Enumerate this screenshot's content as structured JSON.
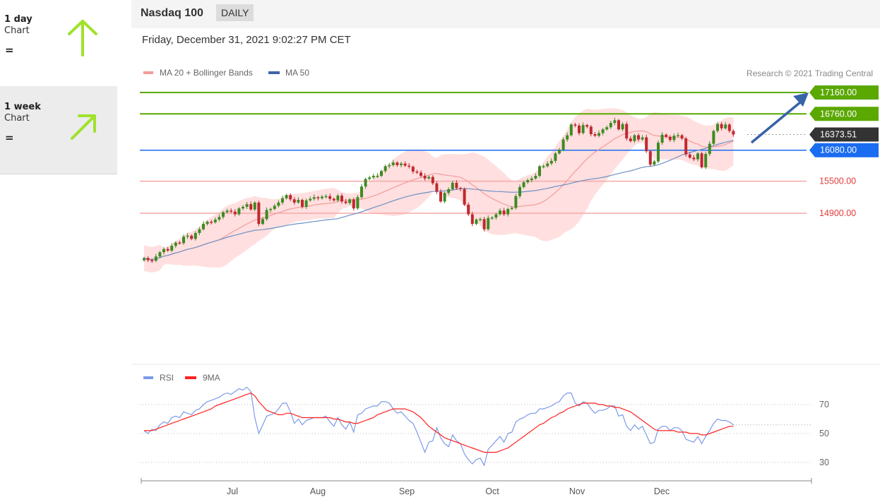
{
  "periods": [
    {
      "title": "1 day",
      "subtitle": "Chart",
      "signal": "=",
      "arrow_icon": "arrow-up-icon",
      "arrow_color": "#9fe22a"
    },
    {
      "title": "1 week",
      "subtitle": "Chart",
      "signal": "=",
      "arrow_icon": "arrow-up-right-icon",
      "arrow_color": "#9fe22a"
    }
  ],
  "header": {
    "title": "Nasdaq 100",
    "interval": "DAILY"
  },
  "date_line": "Friday, December 31, 2021 9:02:27 PM CET",
  "legend": {
    "ma20": "MA 20 + Bollinger Bands",
    "ma50": "MA 50"
  },
  "research": "Research © 2021 Trading Central",
  "colors": {
    "green": "#5aa800",
    "blue": "#1a6cf0",
    "red_line": "#f7a9a9",
    "red_text": "#e23b3b",
    "dark": "#333333",
    "bb_fill": "#ffd9d9",
    "ma50": "#6d90c6",
    "ma20": "#f39b9b",
    "up_candle": "#3e8a23",
    "down_candle": "#c0282f",
    "rsi": "#7b9ae8",
    "rsi_ma": "#ff2020"
  },
  "chart_data": [
    {
      "type": "line",
      "title": "Nasdaq 100",
      "subtitle": "DAILY",
      "x_ticks": [
        "Jul",
        "Aug",
        "Sep",
        "Oct",
        "Nov",
        "Dec"
      ],
      "ylim": [
        13000,
        17300
      ],
      "levels": [
        {
          "value": 17160,
          "label": "17160.00",
          "kind": "target"
        },
        {
          "value": 16760,
          "label": "16760.00",
          "kind": "resistance"
        },
        {
          "value": 16373.51,
          "label": "16373.51",
          "kind": "last"
        },
        {
          "value": 16080,
          "label": "16080.00",
          "kind": "pivot"
        },
        {
          "value": 15500,
          "label": "15500.00",
          "kind": "support"
        },
        {
          "value": 14900,
          "label": "14900.00",
          "kind": "support"
        }
      ],
      "series": [
        {
          "name": "MA 20 + Bollinger Bands"
        },
        {
          "name": "MA 50"
        }
      ],
      "close": [
        14060,
        14020,
        14010,
        14090,
        14170,
        14230,
        14200,
        14290,
        14350,
        14340,
        14460,
        14480,
        14420,
        14530,
        14600,
        14700,
        14740,
        14730,
        14780,
        14830,
        14920,
        14950,
        14930,
        14880,
        14990,
        15020,
        15070,
        14970,
        15100,
        14700,
        14790,
        14960,
        14980,
        15040,
        15100,
        15180,
        15240,
        15160,
        15100,
        15150,
        15020,
        15140,
        15170,
        15200,
        15180,
        15210,
        15220,
        15170,
        15140,
        15230,
        15120,
        15090,
        15160,
        14990,
        15200,
        15400,
        15540,
        15570,
        15600,
        15600,
        15690,
        15780,
        15800,
        15850,
        15800,
        15830,
        15790,
        15770,
        15680,
        15660,
        15600,
        15550,
        15580,
        15460,
        15300,
        15120,
        15280,
        15350,
        15470,
        15370,
        15350,
        15060,
        14880,
        14700,
        14780,
        14790,
        14600,
        14810,
        14820,
        14880,
        14950,
        14880,
        14980,
        15000,
        15220,
        15390,
        15480,
        15520,
        15550,
        15600,
        15780,
        15780,
        15830,
        15880,
        16020,
        16090,
        16280,
        16360,
        16560,
        16540,
        16400,
        16550,
        16520,
        16380,
        16350,
        16400,
        16470,
        16510,
        16590,
        16640,
        16470,
        16570,
        16300,
        16250,
        16360,
        16280,
        16320,
        16060,
        15810,
        15870,
        16220,
        16370,
        16330,
        16270,
        16350,
        16360,
        16300,
        16000,
        15940,
        15910,
        16020,
        15760,
        16010,
        16200,
        16440,
        16570,
        16490,
        16560,
        16440,
        16373.51
      ],
      "rsi": {
        "title": "RSI",
        "ma_name": "9MA",
        "levels": [
          70,
          50,
          30
        ],
        "values": [
          52,
          50,
          53,
          52,
          56,
          58,
          57,
          61,
          62,
          61,
          65,
          64,
          63,
          66,
          67,
          70,
          72,
          73,
          74,
          75,
          77,
          78,
          77,
          79,
          81,
          80,
          82,
          79,
          61,
          50,
          56,
          62,
          63,
          64,
          67,
          71,
          71,
          65,
          57,
          60,
          56,
          59,
          60,
          61,
          61,
          61,
          62,
          58,
          55,
          61,
          56,
          53,
          58,
          51,
          63,
          64,
          67,
          68,
          69,
          69,
          72,
          72,
          71,
          67,
          64,
          65,
          62,
          59,
          57,
          51,
          44,
          37,
          44,
          45,
          54,
          47,
          43,
          41,
          49,
          45,
          43,
          36,
          32,
          29,
          32,
          33,
          28,
          39,
          42,
          45,
          48,
          44,
          50,
          51,
          58,
          60,
          61,
          63,
          64,
          64,
          67,
          67,
          68,
          69,
          71,
          72,
          76,
          78,
          78,
          71,
          69,
          72,
          71,
          67,
          64,
          66,
          66,
          67,
          69,
          69,
          62,
          63,
          55,
          52,
          56,
          53,
          55,
          49,
          43,
          44,
          53,
          55,
          55,
          52,
          54,
          54,
          52,
          46,
          45,
          44,
          48,
          43,
          48,
          52,
          57,
          60,
          59,
          59,
          58,
          56
        ],
        "ma_values": [
          52,
          52,
          52,
          53,
          54,
          55,
          56,
          57,
          58,
          59,
          60,
          61,
          62,
          63,
          64,
          65,
          66,
          67,
          69,
          70,
          71,
          72,
          73,
          74,
          75,
          76,
          77,
          78,
          76,
          72,
          69,
          66,
          65,
          64,
          63,
          63,
          64,
          64,
          63,
          62,
          61,
          61,
          61,
          61,
          61,
          61,
          61,
          61,
          60,
          60,
          59,
          58,
          58,
          57,
          57,
          58,
          59,
          60,
          61,
          63,
          64,
          65,
          66,
          67,
          67,
          67,
          67,
          66,
          65,
          63,
          61,
          58,
          55,
          53,
          51,
          49,
          47,
          46,
          45,
          44,
          43,
          42,
          41,
          40,
          39,
          38,
          37,
          37,
          37,
          37,
          38,
          39,
          40,
          42,
          44,
          46,
          48,
          50,
          52,
          54,
          56,
          57,
          59,
          61,
          62,
          64,
          65,
          67,
          68,
          69,
          70,
          71,
          71,
          71,
          71,
          70,
          70,
          69,
          69,
          68,
          68,
          67,
          66,
          65,
          63,
          61,
          59,
          57,
          55,
          53,
          52,
          52,
          52,
          52,
          52,
          51,
          51,
          51,
          50,
          50,
          50,
          49,
          49,
          50,
          51,
          52,
          53,
          54,
          55,
          55
        ]
      }
    }
  ]
}
